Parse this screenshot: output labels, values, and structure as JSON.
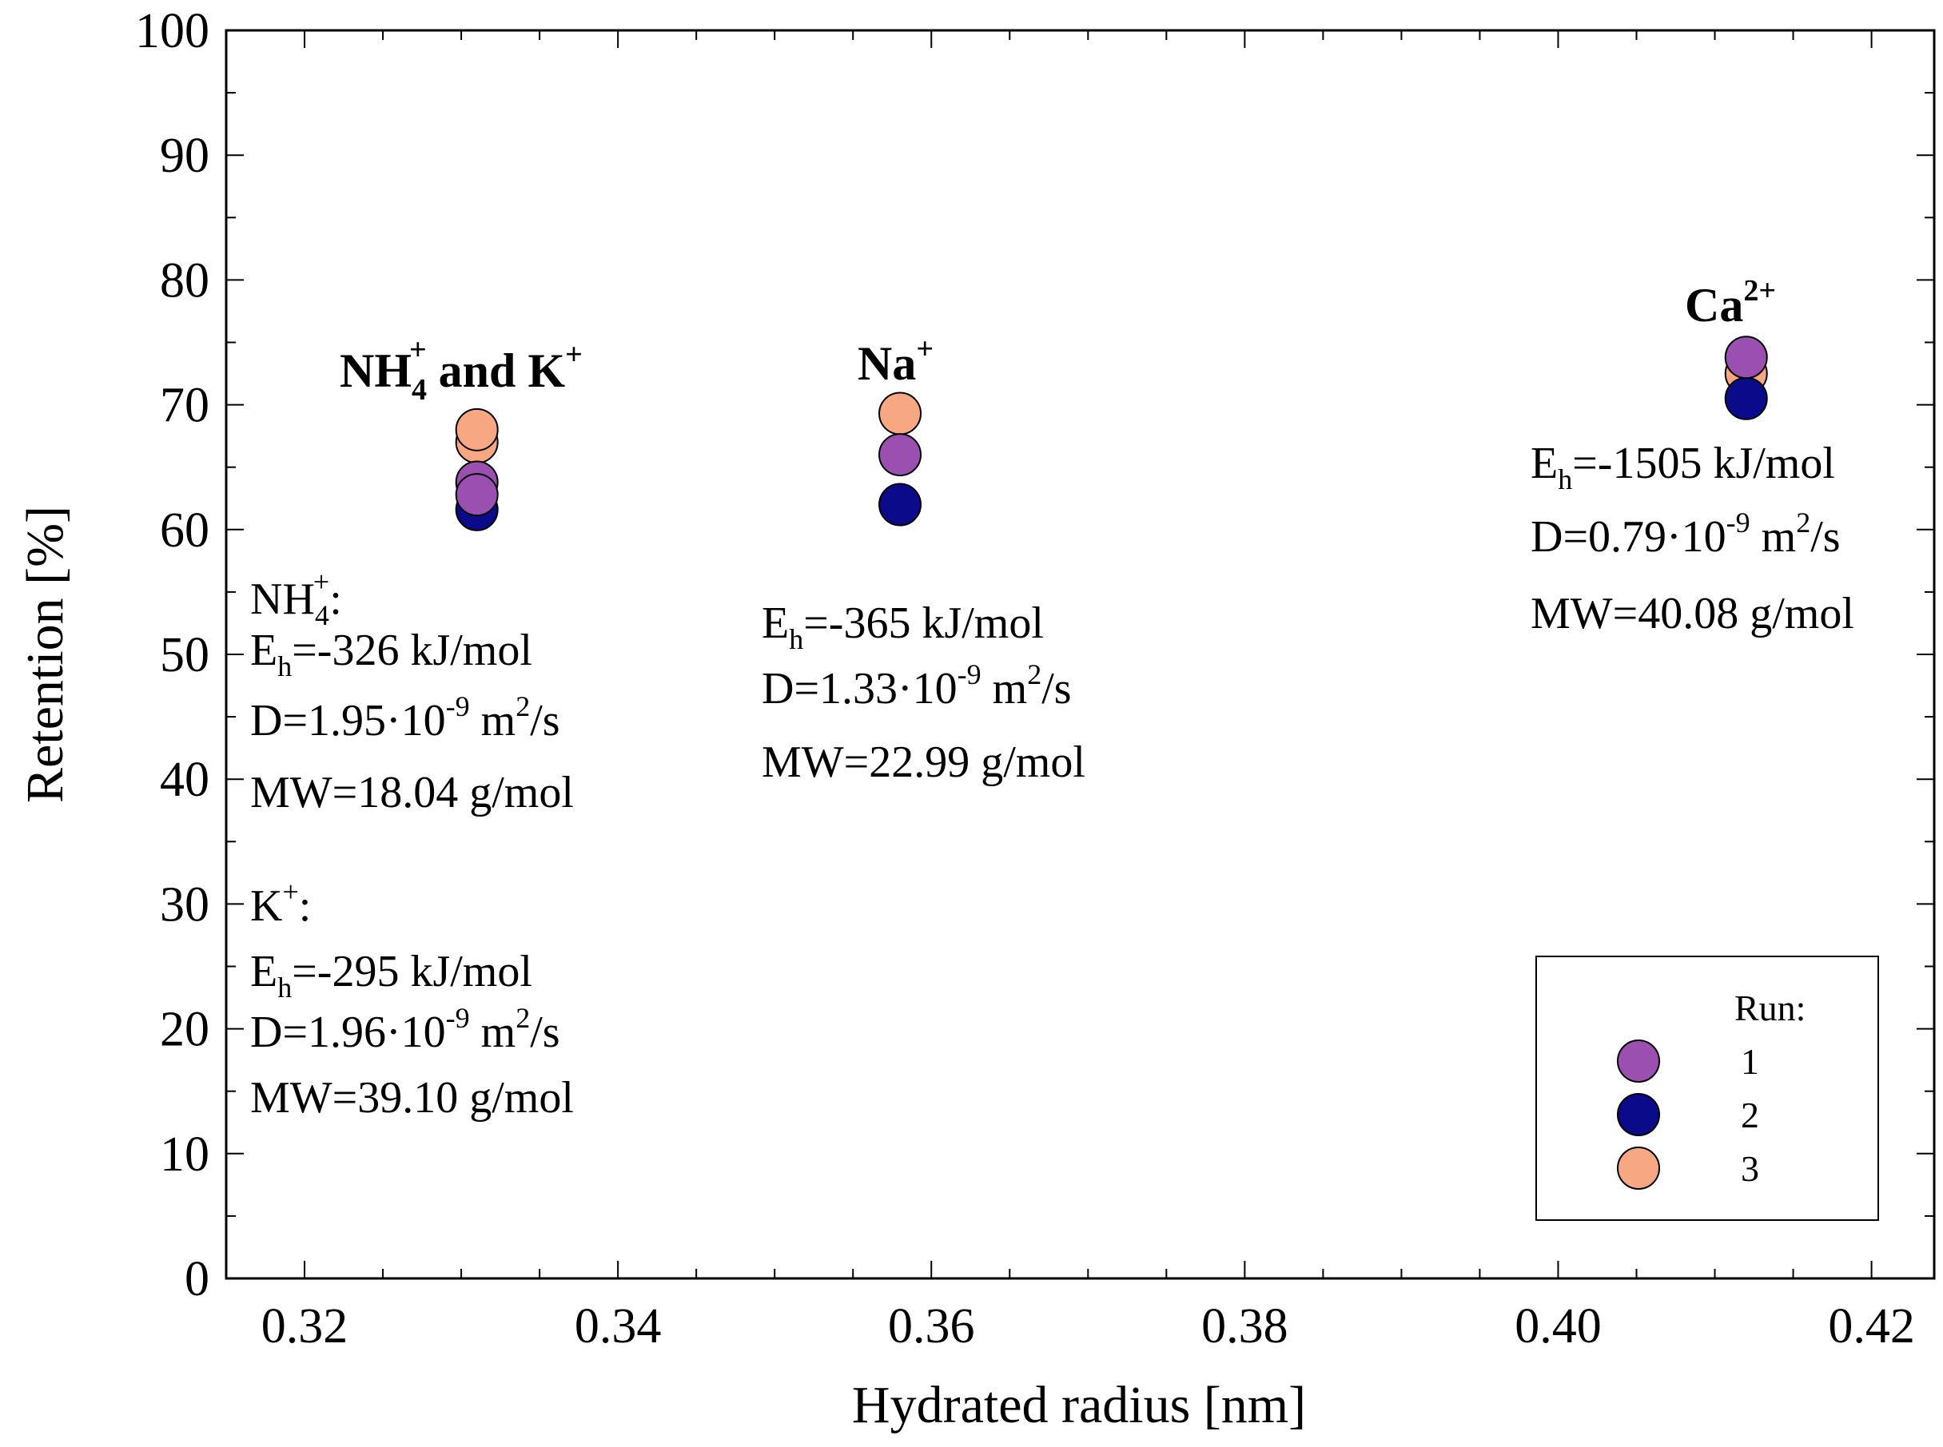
{
  "chart_data": {
    "type": "scatter",
    "title": "",
    "xlabel": "Hydrated radius [nm]",
    "ylabel": "Retention [%]",
    "xlim": [
      0.315,
      0.424
    ],
    "ylim": [
      0,
      100
    ],
    "xticks": [
      0.32,
      0.34,
      0.36,
      0.38,
      0.4,
      0.42
    ],
    "xtick_labels": [
      "0.32",
      "0.34",
      "0.36",
      "0.38",
      "0.40",
      "0.42"
    ],
    "yticks": [
      0,
      10,
      20,
      30,
      40,
      50,
      60,
      70,
      80,
      90,
      100
    ],
    "ytick_labels": [
      "0",
      "10",
      "20",
      "30",
      "40",
      "50",
      "60",
      "70",
      "80",
      "90",
      "100"
    ],
    "grid": false,
    "legend": {
      "title": "Run:",
      "placement": "bottom-right",
      "entries": [
        "1",
        "2",
        "3"
      ]
    },
    "series": [
      {
        "name": "1",
        "color": "#9b4fb0",
        "points": [
          {
            "x": 0.331,
            "y": 63.8
          },
          {
            "x": 0.331,
            "y": 62.8
          },
          {
            "x": 0.358,
            "y": 66.0
          },
          {
            "x": 0.412,
            "y": 73.8
          }
        ]
      },
      {
        "name": "2",
        "color": "#0a0a8a",
        "points": [
          {
            "x": 0.331,
            "y": 61.6
          },
          {
            "x": 0.358,
            "y": 62.0
          },
          {
            "x": 0.412,
            "y": 70.5
          }
        ]
      },
      {
        "name": "3",
        "color": "#f7a882",
        "points": [
          {
            "x": 0.331,
            "y": 67.0
          },
          {
            "x": 0.331,
            "y": 68.0
          },
          {
            "x": 0.358,
            "y": 69.3
          },
          {
            "x": 0.412,
            "y": 72.5
          }
        ]
      }
    ],
    "annotations": {
      "nh4_k": {
        "label": {
          "main": "NH",
          "sub": "4",
          "sup": "+",
          "rest": " and K",
          "sup2": "+"
        },
        "nh4_heading": {
          "main": "NH",
          "sub": "4",
          "sup": "+",
          "colon": ":"
        },
        "nh4_eh": {
          "pre": "E",
          "sub": "h",
          "post": "=-326 kJ/mol"
        },
        "nh4_d": {
          "pre": "D=1.95·10",
          "sup": "-9",
          "mid": " m",
          "sup2": "2",
          "post": "/s"
        },
        "nh4_mw": "MW=18.04 g/mol",
        "k_heading": {
          "main": "K",
          "sup": "+",
          "colon": ":"
        },
        "k_eh": {
          "pre": "E",
          "sub": "h",
          "post": "=-295 kJ/mol"
        },
        "k_d": {
          "pre": "D=1.96·10",
          "sup": "-9",
          "mid": " m",
          "sup2": "2",
          "post": "/s"
        },
        "k_mw": "MW=39.10 g/mol"
      },
      "na": {
        "label": {
          "main": "Na",
          "sup": "+"
        },
        "eh": {
          "pre": "E",
          "sub": "h",
          "post": "=-365 kJ/mol"
        },
        "d": {
          "pre": "D=1.33·10",
          "sup": "-9",
          "mid": " m",
          "sup2": "2",
          "post": "/s"
        },
        "mw": "MW=22.99 g/mol"
      },
      "ca": {
        "label": {
          "main": "Ca",
          "sup": "2+"
        },
        "eh": {
          "pre": "E",
          "sub": "h",
          "post": "=-1505 kJ/mol"
        },
        "d": {
          "pre": "D=0.79·10",
          "sup": "-9",
          "mid": " m",
          "sup2": "2",
          "post": "/s"
        },
        "mw": "MW=40.08 g/mol"
      }
    }
  }
}
